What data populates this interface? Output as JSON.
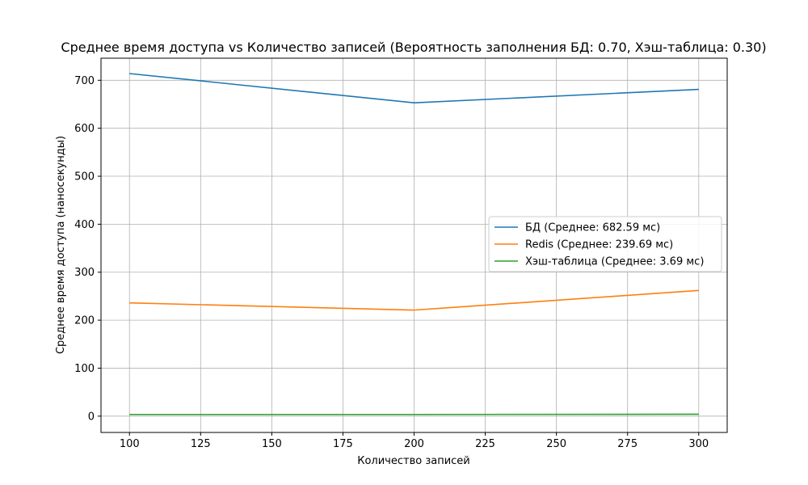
{
  "chart_data": {
    "type": "line",
    "title": "Среднее время доступа vs Количество записей (Вероятность заполнения БД: 0.70, Хэш-таблица: 0.30)",
    "xlabel": "Количество записей",
    "ylabel": "Среднее время доступа (наносекунды)",
    "x": [
      100,
      200,
      300
    ],
    "xlim": [
      90,
      310
    ],
    "ylim": [
      -34,
      746
    ],
    "xticks": [
      100,
      125,
      150,
      175,
      200,
      225,
      250,
      275,
      300
    ],
    "yticks": [
      0,
      100,
      200,
      300,
      400,
      500,
      600,
      700
    ],
    "grid": true,
    "legend_position": "center-right",
    "series": [
      {
        "name": "БД (Среднее: 682.59 мс)",
        "values": [
          714,
          653,
          681
        ],
        "color": "#1f77b4"
      },
      {
        "name": "Redis (Среднее: 239.69 мс)",
        "values": [
          236,
          221,
          262
        ],
        "color": "#ff7f0e"
      },
      {
        "name": "Хэш-таблица (Среднее: 3.69 мс)",
        "values": [
          3.5,
          3.5,
          4.0
        ],
        "color": "#2ca02c"
      }
    ]
  }
}
